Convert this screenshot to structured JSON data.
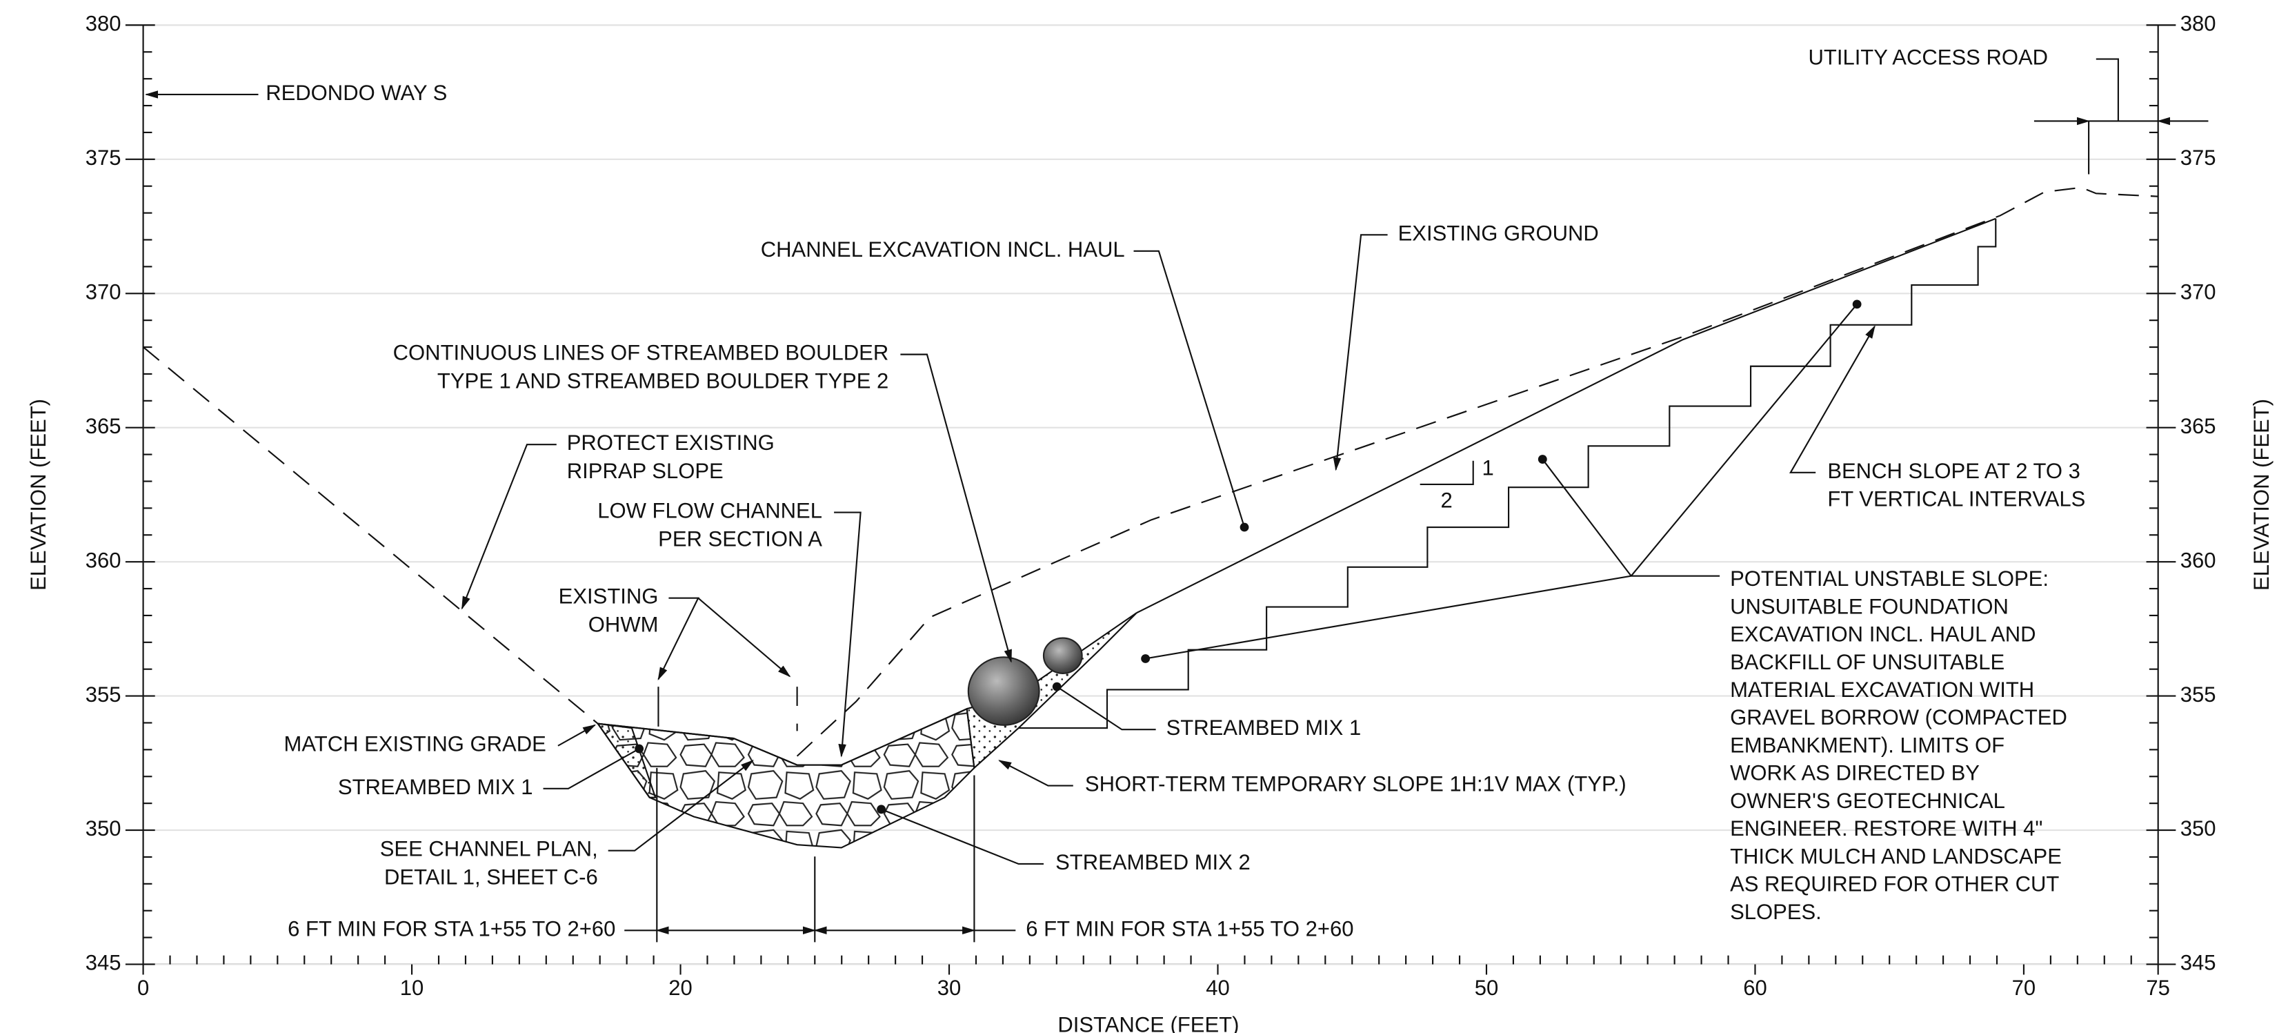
{
  "axes": {
    "x_label": "DISTANCE (FEET)",
    "y_label_left": "ELEVATION (FEET)",
    "y_label_right": "ELEVATION (FEET)",
    "xlim": [
      0,
      75
    ],
    "xticks": [
      0,
      10,
      20,
      30,
      40,
      50,
      60,
      70,
      75
    ],
    "ylim": [
      345,
      380
    ],
    "yticks": [
      345,
      350,
      355,
      360,
      365,
      370,
      375,
      380
    ],
    "grid": true
  },
  "annotations": [
    {
      "lines": [
        "REDONDO WAY S"
      ]
    },
    {
      "lines": [
        "UTILITY ACCESS ROAD"
      ]
    },
    {
      "lines": [
        "CHANNEL EXCAVATION INCL. HAUL"
      ]
    },
    {
      "lines": [
        "EXISTING GROUND"
      ]
    },
    {
      "lines": [
        "CONTINUOUS LINES OF STREAMBED BOULDER",
        "TYPE 1 AND STREAMBED BOULDER TYPE 2"
      ]
    },
    {
      "lines": [
        "PROTECT EXISTING",
        "RIPRAP SLOPE"
      ]
    },
    {
      "lines": [
        "LOW FLOW CHANNEL",
        "PER SECTION A"
      ]
    },
    {
      "lines": [
        "EXISTING",
        "OHWM"
      ]
    },
    {
      "lines": [
        "MATCH EXISTING GRADE"
      ]
    },
    {
      "lines": [
        "STREAMBED MIX 1"
      ]
    },
    {
      "lines": [
        "SEE CHANNEL PLAN,",
        "DETAIL 1, SHEET C-6"
      ]
    },
    {
      "lines": [
        "6 FT MIN FOR STA 1+55 TO 2+60"
      ]
    },
    {
      "lines": [
        "6 FT MIN FOR STA 1+55 TO 2+60"
      ]
    },
    {
      "lines": [
        "STREAMBED MIX 1"
      ]
    },
    {
      "lines": [
        "SHORT-TERM TEMPORARY SLOPE 1H:1V MAX (TYP.)"
      ]
    },
    {
      "lines": [
        "STREAMBED MIX 2"
      ]
    },
    {
      "lines": [
        "BENCH SLOPE AT 2 TO 3",
        "FT VERTICAL INTERVALS"
      ]
    },
    {
      "lines": [
        "POTENTIAL UNSTABLE SLOPE:",
        "UNSUITABLE FOUNDATION",
        "EXCAVATION INCL. HAUL AND",
        "BACKFILL OF UNSUITABLE",
        "MATERIAL EXCAVATION WITH",
        "GRAVEL BORROW (COMPACTED",
        "EMBANKMENT).  LIMITS OF",
        "WORK AS DIRECTED BY",
        "OWNER'S GEOTECHNICAL",
        "ENGINEER. RESTORE WITH 4\"",
        "THICK MULCH AND LANDSCAPE",
        "AS REQUIRED FOR OTHER CUT",
        "SLOPES."
      ]
    },
    {
      "lines": [
        "1"
      ]
    },
    {
      "lines": [
        "2"
      ]
    }
  ]
}
